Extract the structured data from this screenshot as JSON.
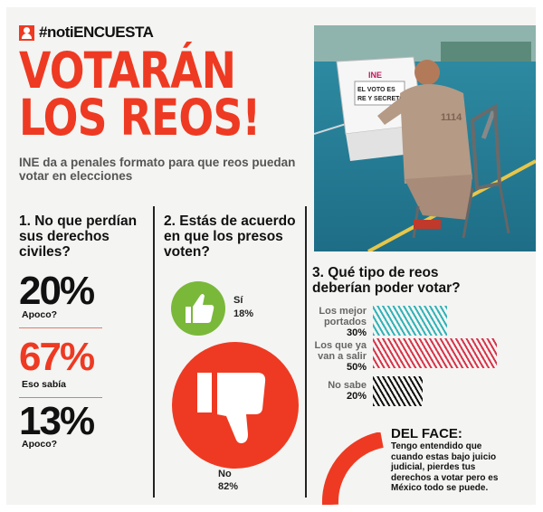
{
  "header": {
    "hashtag": "#notiENCUESTA",
    "title_line1": "VOTARÁN",
    "title_line2": "LOS REOS!",
    "subtitle": "INE da a penales formato para que reos puedan votar en elecciones"
  },
  "photo": {
    "logo": "INE",
    "sign_line1": "EL VOTO ES",
    "sign_line2": "RE Y SECRETO",
    "uniform_number": "1114"
  },
  "q1": {
    "title": "1. No que perdían sus derechos civiles?",
    "results": [
      {
        "value": "20%",
        "label": "Apoco?"
      },
      {
        "value": "67%",
        "label": "Eso sabía"
      },
      {
        "value": "13%",
        "label": "Apoco?"
      }
    ]
  },
  "q2": {
    "title": "2. Estás de acuerdo en que los presos voten?",
    "yes": {
      "label": "Sí",
      "value": "18%"
    },
    "no": {
      "label": "No",
      "value": "82%"
    }
  },
  "q3": {
    "title": "3. Qué tipo de reos deberían poder votar?",
    "options": [
      {
        "label": "Los mejor portados",
        "value": "30%",
        "pct": 30,
        "color": "#2fb3b8"
      },
      {
        "label": "Los que ya van a salir",
        "value": "50%",
        "pct": 50,
        "color": "#d8344a"
      },
      {
        "label": "No sabe",
        "value": "20%",
        "pct": 20,
        "color": "#111111"
      }
    ]
  },
  "face": {
    "title": "DEL FACE:",
    "text": "Tengo entendido que cuando estas bajo juicio judicial, pierdes tus derechos a votar pero es México todo se puede."
  },
  "colors": {
    "accent": "#ee3a22",
    "green": "#7ab83a",
    "teal": "#2fb3b8",
    "crimson": "#d8344a"
  }
}
